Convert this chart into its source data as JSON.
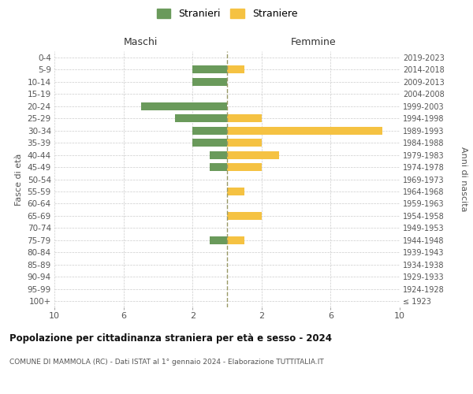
{
  "age_groups": [
    "100+",
    "95-99",
    "90-94",
    "85-89",
    "80-84",
    "75-79",
    "70-74",
    "65-69",
    "60-64",
    "55-59",
    "50-54",
    "45-49",
    "40-44",
    "35-39",
    "30-34",
    "25-29",
    "20-24",
    "15-19",
    "10-14",
    "5-9",
    "0-4"
  ],
  "birth_years": [
    "≤ 1923",
    "1924-1928",
    "1929-1933",
    "1934-1938",
    "1939-1943",
    "1944-1948",
    "1949-1953",
    "1954-1958",
    "1959-1963",
    "1964-1968",
    "1969-1973",
    "1974-1978",
    "1979-1983",
    "1984-1988",
    "1989-1993",
    "1994-1998",
    "1999-2003",
    "2004-2008",
    "2009-2013",
    "2014-2018",
    "2019-2023"
  ],
  "males": [
    0,
    0,
    0,
    0,
    0,
    1,
    0,
    0,
    0,
    0,
    0,
    1,
    1,
    2,
    2,
    3,
    5,
    0,
    2,
    2,
    0
  ],
  "females": [
    0,
    0,
    0,
    0,
    0,
    1,
    0,
    2,
    0,
    1,
    0,
    2,
    3,
    2,
    9,
    2,
    0,
    0,
    0,
    1,
    0
  ],
  "male_color": "#6a9a5b",
  "female_color": "#f5c242",
  "male_label": "Stranieri",
  "female_label": "Straniere",
  "title": "Popolazione per cittadinanza straniera per età e sesso - 2024",
  "subtitle": "COMUNE DI MAMMOLA (RC) - Dati ISTAT al 1° gennaio 2024 - Elaborazione TUTTITALIA.IT",
  "ylabel_left": "Fasce di età",
  "ylabel_right": "Anni di nascita",
  "xlim": 10,
  "xtick_positions": [
    -10,
    -6,
    -2,
    2,
    6,
    10
  ],
  "center_line_color": "#999966",
  "background_color": "#ffffff",
  "grid_color": "#cccccc",
  "bar_height": 0.65
}
